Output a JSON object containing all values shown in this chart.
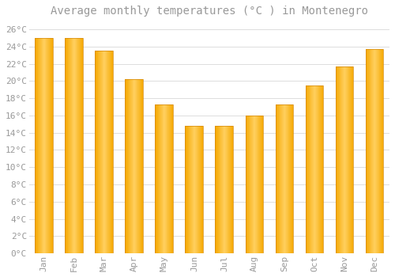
{
  "title": "Average monthly temperatures (°C ) in Montenegro",
  "months": [
    "Jan",
    "Feb",
    "Mar",
    "Apr",
    "May",
    "Jun",
    "Jul",
    "Aug",
    "Sep",
    "Oct",
    "Nov",
    "Dec"
  ],
  "values": [
    25.0,
    25.0,
    23.5,
    20.2,
    17.3,
    14.8,
    14.8,
    16.0,
    17.3,
    19.5,
    21.7,
    23.7
  ],
  "bar_color_left": "#F5A800",
  "bar_color_mid": "#FFD060",
  "bar_color_right": "#F5A800",
  "bar_edge_color": "#D4880A",
  "background_color": "#FFFFFF",
  "plot_bg_color": "#FFFFFF",
  "grid_color": "#DDDDDD",
  "text_color": "#999999",
  "ylim": [
    0,
    27
  ],
  "yticks": [
    0,
    2,
    4,
    6,
    8,
    10,
    12,
    14,
    16,
    18,
    20,
    22,
    24,
    26
  ],
  "title_fontsize": 10,
  "tick_fontsize": 8,
  "bar_width": 0.6
}
